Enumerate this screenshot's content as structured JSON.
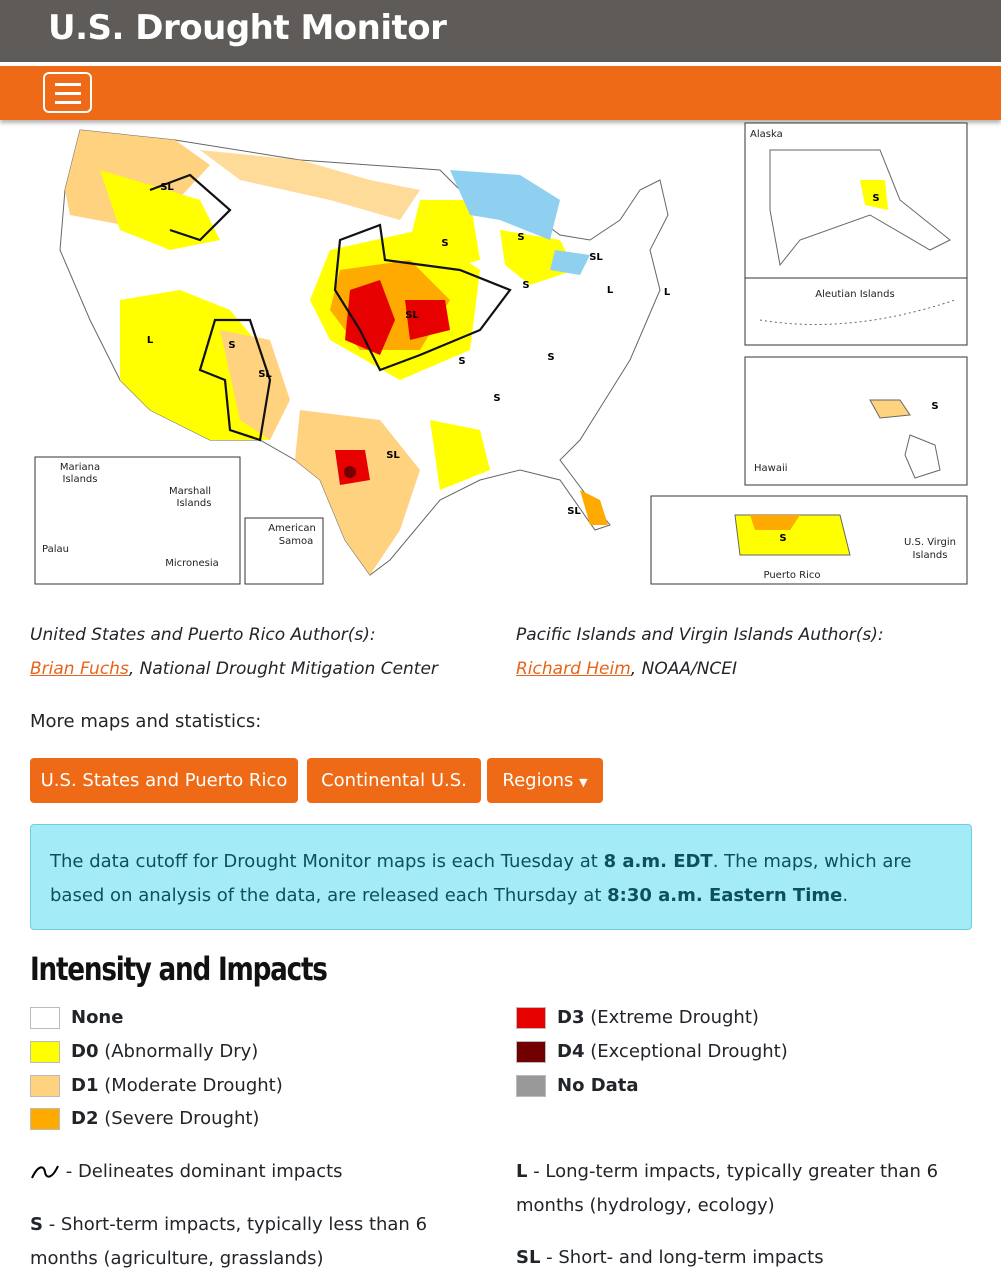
{
  "header": {
    "title": "U.S. Drought Monitor"
  },
  "map": {
    "inset_labels": [
      "Alaska",
      "Aleutian Islands",
      "Hawaii",
      "Puerto Rico",
      "U.S. Virgin",
      "Islands",
      "Mariana",
      "Islands",
      "Marshall",
      "Islands",
      "Palau",
      "Micronesia",
      "American",
      "Samoa"
    ],
    "impact_labels": [
      "SL",
      "S",
      "S",
      "SL",
      "L",
      "S",
      "L",
      "SL",
      "S",
      "L",
      "SL",
      "S",
      "S",
      "S",
      "SL",
      "SL",
      "S",
      "S",
      "S"
    ]
  },
  "authors": [
    {
      "heading": "United States and Puerto Rico Author(s):",
      "name": "Brian Fuchs",
      "affiliation": ", National Drought Mitigation Center"
    },
    {
      "heading": "Pacific Islands and Virgin Islands Author(s):",
      "name": "Richard Heim",
      "affiliation": ", NOAA/NCEI"
    }
  ],
  "more_maps": {
    "label": "More maps and statistics:",
    "buttons": [
      "U.S. States and Puerto Rico",
      "Continental U.S.",
      "Regions"
    ]
  },
  "notice": {
    "parts": [
      {
        "text": "The data cutoff for Drought Monitor maps is each Tuesday at "
      },
      {
        "bold": "8 a.m. EDT"
      },
      {
        "text": ". The maps, which are based on analysis of the data, are released each Thursday at "
      },
      {
        "bold": "8:30 a.m. Eastern Time"
      },
      {
        "text": "."
      }
    ]
  },
  "legend": {
    "title": "Intensity and Impacts",
    "items": [
      {
        "code": "None"
      },
      {
        "code": "D0",
        "desc": " (Abnormally Dry)"
      },
      {
        "code": "D1",
        "desc": " (Moderate Drought)"
      },
      {
        "code": "D2",
        "desc": " (Severe Drought)"
      },
      {
        "code": "D3",
        "desc": " (Extreme Drought)"
      },
      {
        "code": "D4",
        "desc": " (Exceptional Drought)"
      },
      {
        "code": "No Data"
      }
    ],
    "impacts": [
      {
        "desc": " - Delineates dominant impacts"
      },
      {
        "code": "L",
        "desc": " - Long-term impacts, typically greater than 6 months (hydrology, ecology)"
      },
      {
        "code": "S",
        "desc": " - Short-term impacts, typically less than 6 months (agriculture, grasslands)"
      },
      {
        "code": "SL",
        "desc": " - Short- and long-term impacts"
      }
    ]
  }
}
